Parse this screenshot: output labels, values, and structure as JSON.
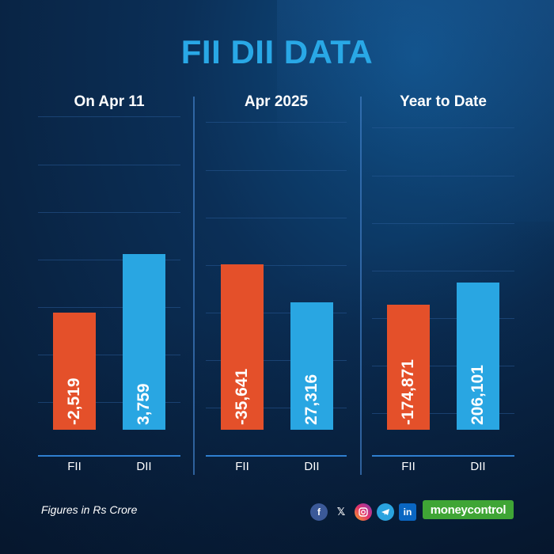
{
  "title": "FII DII DATA",
  "footnote": "Figures in Rs Crore",
  "brand": "moneycontrol",
  "social_icons": [
    "facebook-icon",
    "x-icon",
    "instagram-icon",
    "telegram-icon",
    "linkedin-icon"
  ],
  "colors": {
    "fii": "#e4502a",
    "dii": "#29a6e2",
    "title": "#29a8e6",
    "brand": "#3fa535"
  },
  "chart_data": [
    {
      "type": "bar",
      "title": "On Apr 11",
      "categories": [
        "FII",
        "DII"
      ],
      "values": [
        -2519,
        3759
      ],
      "value_labels": [
        "-2,519",
        "3,759"
      ],
      "layout": "waterfall"
    },
    {
      "type": "bar",
      "title": "Apr 2025",
      "categories": [
        "FII",
        "DII"
      ],
      "values": [
        -35641,
        27316
      ],
      "value_labels": [
        "-35,641",
        "27,316"
      ],
      "layout": "waterfall"
    },
    {
      "type": "bar",
      "title": "Year to Date",
      "categories": [
        "FII",
        "DII"
      ],
      "values": [
        -174871,
        206101
      ],
      "value_labels": [
        "-174,871",
        "206,101"
      ],
      "layout": "waterfall"
    }
  ]
}
